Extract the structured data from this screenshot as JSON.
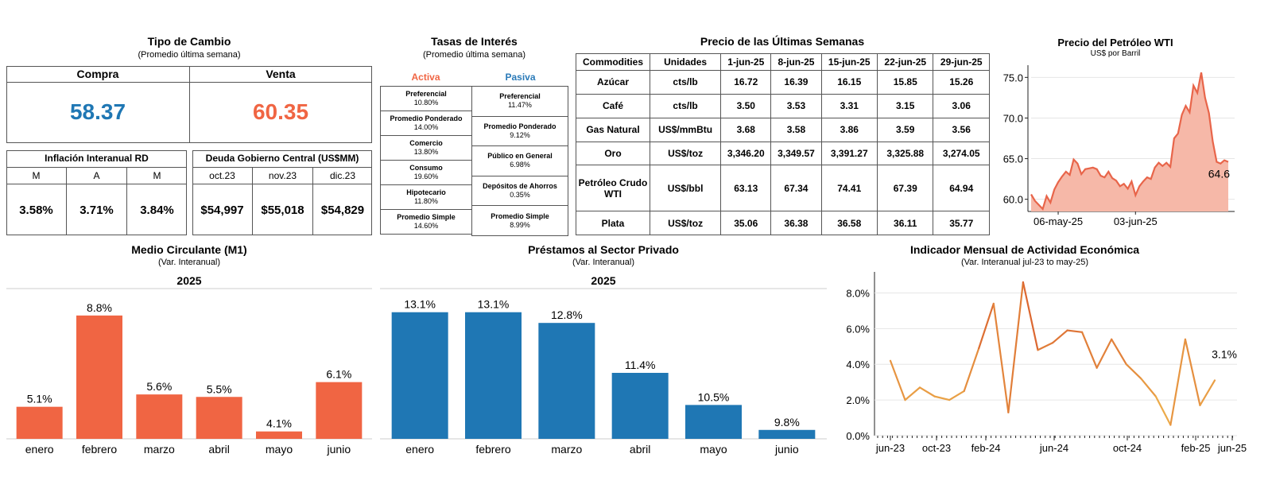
{
  "colors": {
    "compra": "#1f77b4",
    "venta": "#f06543",
    "activa": "#f06543",
    "pasiva": "#2a7ab8",
    "m1_bar": "#f06543",
    "prestamos_bar": "#1f77b4",
    "oil_line": "#e8654a",
    "oil_fill": "#f6b8a8"
  },
  "tipo_cambio": {
    "title": "Tipo de Cambio",
    "subtitle": "(Promedio última semana)",
    "compra_label": "Compra",
    "venta_label": "Venta",
    "compra": "58.37",
    "venta": "60.35"
  },
  "inflacion": {
    "title": "Inflación Interanual RD",
    "headers": [
      "M",
      "A",
      "M"
    ],
    "values": [
      "3.58%",
      "3.71%",
      "3.84%"
    ]
  },
  "deuda": {
    "title": "Deuda Gobierno Central (US$MM)",
    "headers": [
      "oct.23",
      "nov.23",
      "dic.23"
    ],
    "values": [
      "$54,997",
      "$55,018",
      "$54,829"
    ]
  },
  "tasas": {
    "title": "Tasas de Interés",
    "subtitle": "(Promedio última semana)",
    "activa_label": "Activa",
    "pasiva_label": "Pasiva",
    "activa": [
      {
        "label": "Preferencial",
        "value": "10.80%"
      },
      {
        "label": "Promedio Ponderado",
        "value": "14.00%"
      },
      {
        "label": "Comercio",
        "value": "13.80%"
      },
      {
        "label": "Consumo",
        "value": "19.60%"
      },
      {
        "label": "Hipotecario",
        "value": "11.80%"
      },
      {
        "label": "Promedio Simple",
        "value": "14.60%"
      }
    ],
    "pasiva": [
      {
        "label": "Preferencial",
        "value": "11.47%"
      },
      {
        "label": "Promedio Ponderado",
        "value": "9.12%"
      },
      {
        "label": "Público en General",
        "value": "6.98%"
      },
      {
        "label": "Depósitos de Ahorros",
        "value": "0.35%"
      },
      {
        "label": "Promedio Simple",
        "value": "8.99%"
      }
    ]
  },
  "precios": {
    "title": "Precio de las Últimas Semanas",
    "headers": [
      "Commodities",
      "Unidades",
      "1-jun-25",
      "8-jun-25",
      "15-jun-25",
      "22-jun-25",
      "29-jun-25"
    ],
    "rows": [
      [
        "Azúcar",
        "cts/lb",
        "16.72",
        "16.39",
        "16.15",
        "15.85",
        "15.26"
      ],
      [
        "Café",
        "cts/lb",
        "3.50",
        "3.53",
        "3.31",
        "3.15",
        "3.06"
      ],
      [
        "Gas Natural",
        "US$/mmBtu",
        "3.68",
        "3.58",
        "3.86",
        "3.59",
        "3.56"
      ],
      [
        "Oro",
        "US$/toz",
        "3,346.20",
        "3,349.57",
        "3,391.27",
        "3,325.88",
        "3,274.05"
      ],
      [
        "Petróleo Crudo WTI",
        "US$/bbl",
        "63.13",
        "67.34",
        "74.41",
        "67.39",
        "64.94"
      ],
      [
        "Plata",
        "US$/toz",
        "35.06",
        "36.38",
        "36.58",
        "36.11",
        "35.77"
      ]
    ]
  },
  "chart_data": [
    {
      "type": "area",
      "title": "Precio del Petróleo WTI",
      "subtitle": "US$ por Barril",
      "x_ticks": [
        "06-may-25",
        "03-jun-25"
      ],
      "y_ticks": [
        60.0,
        65.0,
        70.0,
        75.0
      ],
      "ylim": [
        58.5,
        76.5
      ],
      "values": [
        60.6,
        59.8,
        59.3,
        58.8,
        60.4,
        59.6,
        61.2,
        62.1,
        62.8,
        63.4,
        63.0,
        64.9,
        64.4,
        63.1,
        63.7,
        63.8,
        63.9,
        63.7,
        62.9,
        62.7,
        63.4,
        62.6,
        62.3,
        61.6,
        61.9,
        61.3,
        62.2,
        60.5,
        61.6,
        62.2,
        62.7,
        62.5,
        63.9,
        64.5,
        64.1,
        64.5,
        64.0,
        67.5,
        68.1,
        70.4,
        71.5,
        70.7,
        74.0,
        73.1,
        75.6,
        72.5,
        70.6,
        67.1,
        64.6,
        64.4,
        64.8,
        64.6
      ],
      "last_label": "64.6"
    },
    {
      "type": "bar",
      "title": "Medio Circulante (M1)",
      "subtitle": "(Var. Interanual)",
      "year": "2025",
      "categories": [
        "enero",
        "febrero",
        "marzo",
        "abril",
        "mayo",
        "junio"
      ],
      "values": [
        5.1,
        8.8,
        5.6,
        5.5,
        4.1,
        6.1
      ],
      "labels": [
        "5.1%",
        "8.8%",
        "5.6%",
        "5.5%",
        "4.1%",
        "6.1%"
      ]
    },
    {
      "type": "bar",
      "title": "Préstamos al Sector Privado",
      "subtitle": "(Var. Interanual)",
      "year": "2025",
      "categories": [
        "enero",
        "febrero",
        "marzo",
        "abril",
        "mayo",
        "junio"
      ],
      "values": [
        13.1,
        13.1,
        12.8,
        11.4,
        10.5,
        9.8
      ],
      "labels": [
        "13.1%",
        "13.1%",
        "12.8%",
        "11.4%",
        "10.5%",
        "9.8%"
      ]
    },
    {
      "type": "line",
      "title": "Indicador Mensual de Actividad Económica",
      "subtitle": "(Var. Interanual jul-23 to may-25)",
      "x_ticks": [
        "jun-23",
        "oct-23",
        "feb-24",
        "jun-24",
        "oct-24",
        "feb-25",
        "jun-25"
      ],
      "y_ticks": [
        "0.0%",
        "2.0%",
        "4.0%",
        "6.0%",
        "8.0%"
      ],
      "ylim": [
        0,
        9
      ],
      "values": [
        4.2,
        2.0,
        2.7,
        2.2,
        2.0,
        2.5,
        4.9,
        7.4,
        1.3,
        8.6,
        4.8,
        5.2,
        5.9,
        5.8,
        3.8,
        5.4,
        4.0,
        3.2,
        2.2,
        0.6,
        5.4,
        1.7,
        3.1
      ],
      "last_label": "3.1%"
    }
  ]
}
